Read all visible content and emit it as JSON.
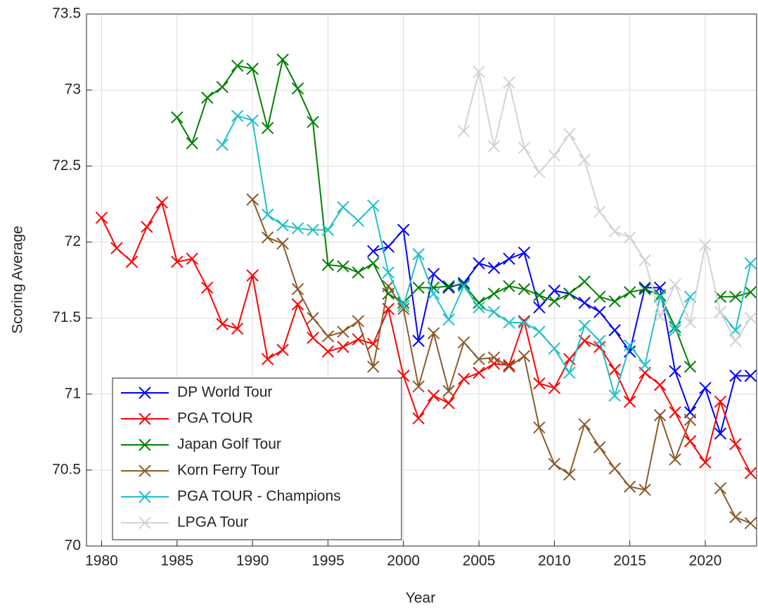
{
  "chart_data": {
    "type": "line",
    "x_label": "Year",
    "y_label": "Scoring Average",
    "x": [
      1980,
      1981,
      1982,
      1983,
      1984,
      1985,
      1986,
      1987,
      1988,
      1989,
      1990,
      1991,
      1992,
      1993,
      1994,
      1995,
      1996,
      1997,
      1998,
      1999,
      2000,
      2001,
      2002,
      2003,
      2004,
      2005,
      2006,
      2007,
      2008,
      2009,
      2010,
      2011,
      2012,
      2013,
      2014,
      2015,
      2016,
      2017,
      2018,
      2019,
      2020,
      2021,
      2022,
      2023
    ],
    "xlim": [
      1979,
      2023.4
    ],
    "xticks": [
      1980,
      1985,
      1990,
      1995,
      2000,
      2005,
      2010,
      2015,
      2020
    ],
    "ylim": [
      70,
      73.5
    ],
    "yticks": [
      70,
      70.5,
      71,
      71.5,
      72,
      72.5,
      73,
      73.5
    ],
    "grid": true,
    "legend": "lower left",
    "series": [
      {
        "name": "DP World Tour",
        "color": "#0000ff",
        "values": [
          null,
          null,
          null,
          null,
          null,
          null,
          null,
          null,
          null,
          null,
          null,
          null,
          null,
          null,
          null,
          null,
          null,
          null,
          71.94,
          71.97,
          72.08,
          71.35,
          71.79,
          71.7,
          71.73,
          71.86,
          71.83,
          71.89,
          71.93,
          71.57,
          71.68,
          71.66,
          71.6,
          71.54,
          71.42,
          71.28,
          71.7,
          71.7,
          71.15,
          70.88,
          71.04,
          70.74,
          71.12,
          71.12
        ]
      },
      {
        "name": "PGA TOUR",
        "color": "#ff0000",
        "values": [
          72.16,
          71.96,
          71.87,
          72.1,
          72.26,
          71.87,
          71.89,
          71.7,
          71.46,
          71.43,
          71.78,
          71.23,
          71.29,
          71.59,
          71.37,
          71.28,
          71.31,
          71.36,
          71.33,
          71.56,
          71.12,
          70.84,
          70.99,
          70.94,
          71.1,
          71.14,
          71.2,
          71.19,
          71.48,
          71.07,
          71.04,
          71.23,
          71.35,
          71.31,
          71.16,
          70.95,
          71.14,
          71.06,
          70.88,
          70.69,
          70.55,
          70.95,
          70.67,
          70.48
        ]
      },
      {
        "name": "Japan Golf Tour",
        "color": "#008000",
        "values": [
          null,
          null,
          null,
          null,
          null,
          72.82,
          72.65,
          72.95,
          73.02,
          73.16,
          73.14,
          72.75,
          73.2,
          73.01,
          72.79,
          71.85,
          71.84,
          71.8,
          71.86,
          71.66,
          71.6,
          71.7,
          71.7,
          71.71,
          71.72,
          71.6,
          71.66,
          71.71,
          71.69,
          71.65,
          71.61,
          71.66,
          71.74,
          71.64,
          71.61,
          71.67,
          71.69,
          71.65,
          71.44,
          71.18,
          null,
          71.64,
          71.64,
          71.67
        ]
      },
      {
        "name": "Korn Ferry Tour",
        "color": "#8b5a2b",
        "values": [
          null,
          null,
          null,
          null,
          null,
          null,
          null,
          null,
          null,
          null,
          72.28,
          72.03,
          71.99,
          71.69,
          71.5,
          71.38,
          71.41,
          71.48,
          71.18,
          71.71,
          71.56,
          71.05,
          71.4,
          71.02,
          71.34,
          71.23,
          71.24,
          71.18,
          71.25,
          70.78,
          70.54,
          70.47,
          70.8,
          70.65,
          70.51,
          70.39,
          70.37,
          70.86,
          70.57,
          70.83,
          null,
          70.38,
          70.19,
          70.15
        ]
      },
      {
        "name": "PGA TOUR - Champions",
        "color": "#20c0c8",
        "values": [
          null,
          null,
          null,
          null,
          null,
          null,
          null,
          null,
          72.64,
          72.83,
          72.8,
          72.18,
          72.11,
          72.09,
          72.08,
          72.08,
          72.23,
          72.14,
          72.24,
          71.8,
          71.58,
          71.92,
          71.66,
          71.49,
          71.71,
          71.57,
          71.54,
          71.47,
          71.47,
          71.41,
          71.3,
          71.14,
          71.45,
          71.35,
          70.99,
          71.32,
          71.19,
          71.64,
          71.42,
          71.64,
          null,
          71.54,
          71.42,
          71.86
        ]
      },
      {
        "name": "LPGA Tour",
        "color": "#d3d3d3",
        "values": [
          null,
          null,
          null,
          null,
          null,
          null,
          null,
          null,
          null,
          null,
          null,
          null,
          null,
          null,
          null,
          null,
          null,
          null,
          null,
          null,
          null,
          null,
          null,
          null,
          72.73,
          73.12,
          72.63,
          73.05,
          72.62,
          72.46,
          72.57,
          72.71,
          72.54,
          72.2,
          72.07,
          72.03,
          71.88,
          71.51,
          71.72,
          71.47,
          71.98,
          71.54,
          71.35,
          71.5
        ]
      }
    ]
  }
}
